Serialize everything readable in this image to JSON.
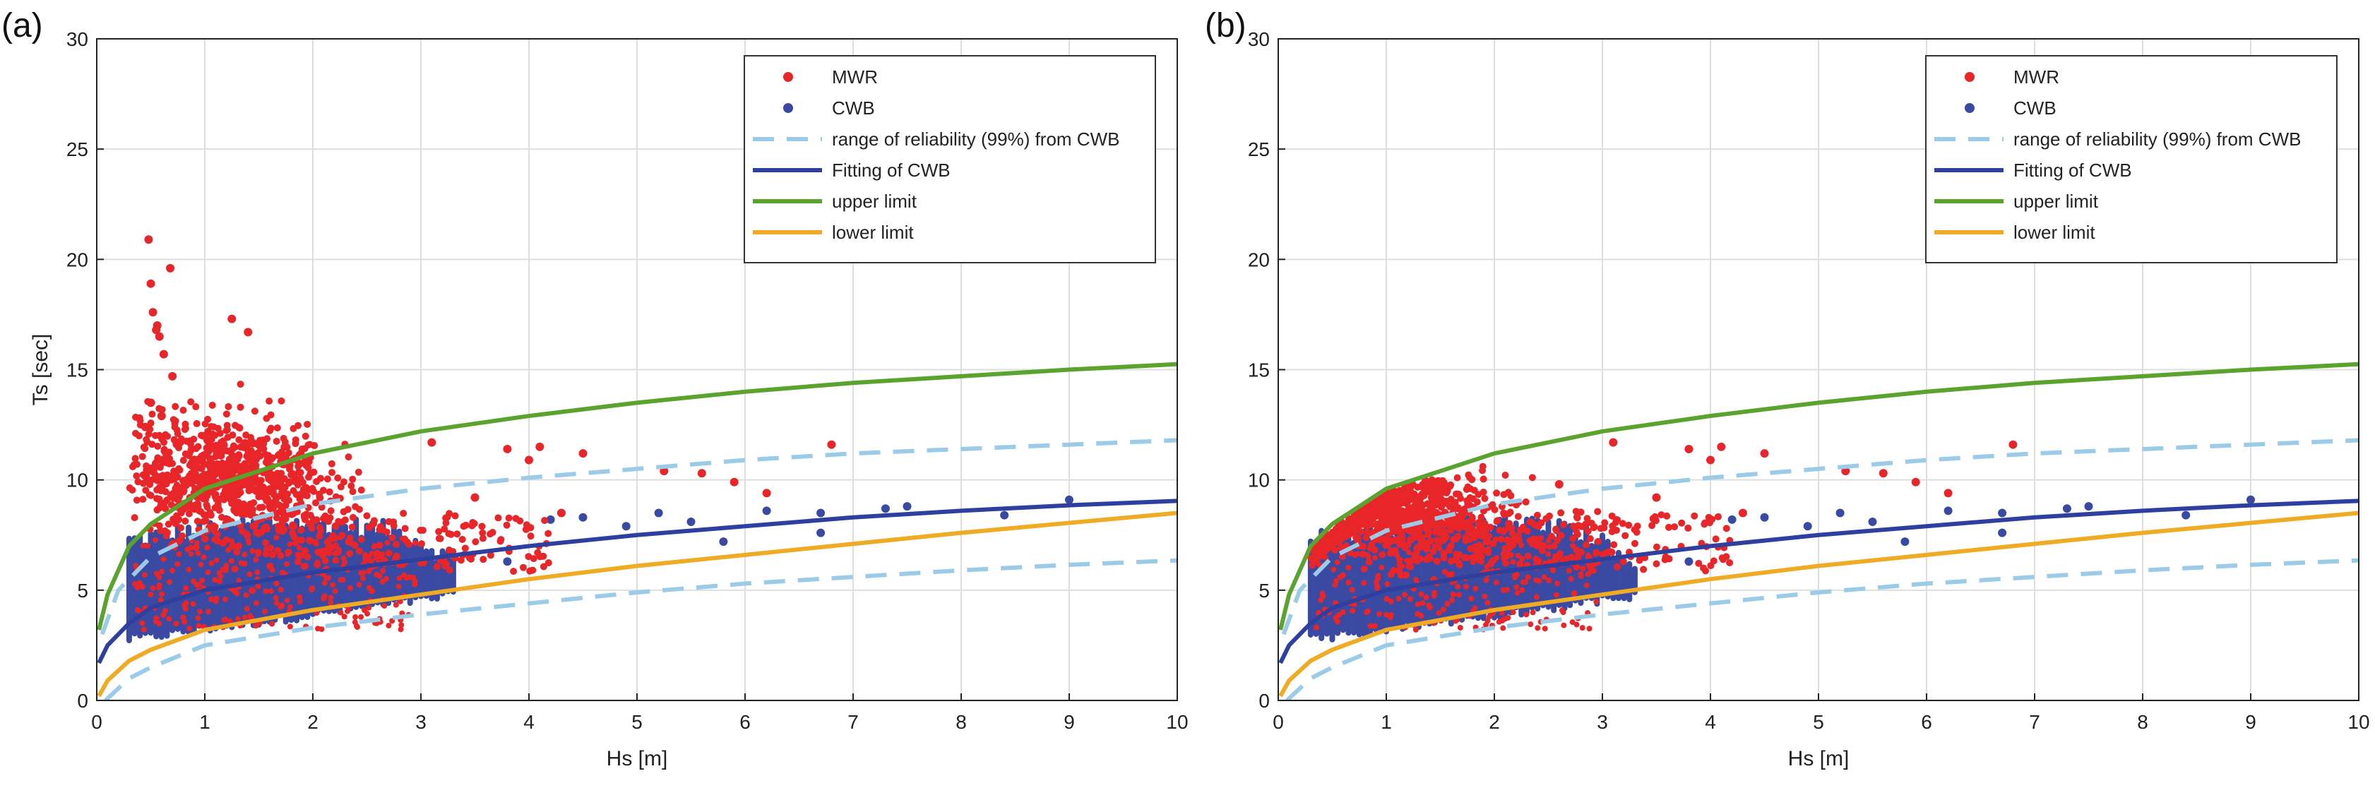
{
  "colors": {
    "mwr": "#e8262a",
    "cwb": "#3a4aa3",
    "range": "#9ccbe8",
    "fitting": "#2e3f9e",
    "upper": "#5aa32e",
    "lower": "#eeab23",
    "grid": "#dedede",
    "axis": "#222222"
  },
  "chart_data": [
    {
      "type": "scatter",
      "panel_label": "(a)",
      "xlabel": "Hs [m]",
      "ylabel": "Ts [sec]",
      "xlim": [
        0,
        10
      ],
      "ylim": [
        0,
        30
      ],
      "xticks": [
        0,
        1,
        2,
        3,
        4,
        5,
        6,
        7,
        8,
        9,
        10
      ],
      "yticks": [
        0,
        5,
        10,
        15,
        20,
        25,
        30
      ],
      "grid": true,
      "legend_position": "top-right",
      "legend": [
        "MWR",
        "CWB",
        "range of reliability (99%) from CWB",
        "Fitting of CWB",
        "upper limit",
        "lower limit"
      ],
      "curves": [
        {
          "name": "upper limit",
          "style": "solid",
          "x": [
            0.02,
            0.1,
            0.3,
            0.5,
            1,
            2,
            3,
            4,
            5,
            6,
            7,
            8,
            9,
            10
          ],
          "y": [
            3.2,
            4.8,
            7.0,
            8.0,
            9.6,
            11.2,
            12.2,
            12.9,
            13.5,
            14.0,
            14.4,
            14.7,
            15.0,
            15.25
          ]
        },
        {
          "name": "range upper (99%)",
          "style": "dashed",
          "x": [
            0.05,
            0.2,
            0.5,
            1,
            2,
            3,
            4,
            5,
            6,
            7,
            8,
            9,
            10
          ],
          "y": [
            3.0,
            5.0,
            6.5,
            7.7,
            8.9,
            9.6,
            10.1,
            10.5,
            10.9,
            11.2,
            11.4,
            11.6,
            11.8
          ]
        },
        {
          "name": "Fitting of CWB",
          "style": "solid",
          "x": [
            0.02,
            0.1,
            0.3,
            0.5,
            1,
            2,
            3,
            4,
            5,
            6,
            7,
            8,
            9,
            10
          ],
          "y": [
            1.7,
            2.5,
            3.5,
            4.2,
            5.0,
            5.8,
            6.4,
            7.0,
            7.5,
            7.9,
            8.3,
            8.6,
            8.85,
            9.05
          ]
        },
        {
          "name": "lower limit",
          "style": "solid",
          "x": [
            0.02,
            0.1,
            0.3,
            0.5,
            1,
            2,
            3,
            4,
            5,
            6,
            7,
            8,
            9,
            10
          ],
          "y": [
            0.2,
            0.9,
            1.8,
            2.3,
            3.2,
            4.1,
            4.8,
            5.5,
            6.1,
            6.6,
            7.1,
            7.6,
            8.05,
            8.5
          ]
        },
        {
          "name": "range lower (99%)",
          "style": "dashed",
          "x": [
            0.08,
            0.3,
            0.5,
            1,
            2,
            3,
            4,
            5,
            6,
            7,
            8,
            9,
            10
          ],
          "y": [
            0.0,
            1.0,
            1.5,
            2.5,
            3.3,
            3.9,
            4.4,
            4.9,
            5.3,
            5.6,
            5.9,
            6.15,
            6.35
          ]
        }
      ],
      "cwb_bars": {
        "x_start": 0.3,
        "x_end": 3.3,
        "x_step": 0.05,
        "top_base": 7.2,
        "top_slope": 1.0,
        "bottom": 2.8,
        "bottom_slope": 0.9
      },
      "mwr_cloud": {
        "x_range": [
          0.3,
          2.0
        ],
        "center": [
          1.2,
          10.0
        ],
        "spread": [
          0.5,
          1.4
        ],
        "count": 900
      },
      "mwr_outliers": {
        "x": [
          0.48,
          0.5,
          0.52,
          0.55,
          0.58,
          0.62,
          0.68,
          0.7,
          0.5,
          0.6,
          0.56,
          0.45,
          1.25,
          1.4,
          3.1,
          3.8,
          4.1,
          4.5,
          5.25,
          5.6,
          5.9,
          6.2,
          6.8,
          4.0,
          3.5,
          4.3
        ],
        "y": [
          20.9,
          18.9,
          17.6,
          16.8,
          16.5,
          15.7,
          19.6,
          14.7,
          13.5,
          12.9,
          17.0,
          12.4,
          17.3,
          16.7,
          11.7,
          11.4,
          11.5,
          11.2,
          10.4,
          10.3,
          9.9,
          9.4,
          11.6,
          10.9,
          9.2,
          8.5
        ]
      },
      "cwb_outliers": {
        "x": [
          3.8,
          4.2,
          4.5,
          4.9,
          5.2,
          5.5,
          6.2,
          6.7,
          6.7,
          7.3,
          7.5,
          8.4,
          9.0,
          5.8
        ],
        "y": [
          6.3,
          8.2,
          8.3,
          7.9,
          8.5,
          8.1,
          8.6,
          8.5,
          7.6,
          8.7,
          8.8,
          8.4,
          9.1,
          7.2
        ]
      }
    },
    {
      "type": "scatter",
      "panel_label": "(b)",
      "xlabel": "Hs [m]",
      "ylabel": "",
      "xlim": [
        0,
        10
      ],
      "ylim": [
        0,
        30
      ],
      "xticks": [
        0,
        1,
        2,
        3,
        4,
        5,
        6,
        7,
        8,
        9,
        10
      ],
      "yticks": [
        0,
        5,
        10,
        15,
        20,
        25,
        30
      ],
      "grid": true,
      "legend_position": "top-right",
      "legend": [
        "MWR",
        "CWB",
        "range of reliability (99%) from CWB",
        "Fitting of CWB",
        "upper limit",
        "lower limit"
      ],
      "curves": [
        {
          "name": "upper limit",
          "style": "solid",
          "x": [
            0.02,
            0.1,
            0.3,
            0.5,
            1,
            2,
            3,
            4,
            5,
            6,
            7,
            8,
            9,
            10
          ],
          "y": [
            3.2,
            4.8,
            7.0,
            8.0,
            9.6,
            11.2,
            12.2,
            12.9,
            13.5,
            14.0,
            14.4,
            14.7,
            15.0,
            15.25
          ]
        },
        {
          "name": "range upper (99%)",
          "style": "dashed",
          "x": [
            0.05,
            0.2,
            0.5,
            1,
            2,
            3,
            4,
            5,
            6,
            7,
            8,
            9,
            10
          ],
          "y": [
            3.0,
            5.0,
            6.5,
            7.7,
            8.9,
            9.6,
            10.1,
            10.5,
            10.9,
            11.2,
            11.4,
            11.6,
            11.8
          ]
        },
        {
          "name": "Fitting of CWB",
          "style": "solid",
          "x": [
            0.02,
            0.1,
            0.3,
            0.5,
            1,
            2,
            3,
            4,
            5,
            6,
            7,
            8,
            9,
            10
          ],
          "y": [
            1.7,
            2.5,
            3.5,
            4.2,
            5.0,
            5.8,
            6.4,
            7.0,
            7.5,
            7.9,
            8.3,
            8.6,
            8.85,
            9.05
          ]
        },
        {
          "name": "lower limit",
          "style": "solid",
          "x": [
            0.02,
            0.1,
            0.3,
            0.5,
            1,
            2,
            3,
            4,
            5,
            6,
            7,
            8,
            9,
            10
          ],
          "y": [
            0.2,
            0.9,
            1.8,
            2.3,
            3.2,
            4.1,
            4.8,
            5.5,
            6.1,
            6.6,
            7.1,
            7.6,
            8.05,
            8.5
          ]
        },
        {
          "name": "range lower (99%)",
          "style": "dashed",
          "x": [
            0.08,
            0.3,
            0.5,
            1,
            2,
            3,
            4,
            5,
            6,
            7,
            8,
            9,
            10
          ],
          "y": [
            0.0,
            1.0,
            1.5,
            2.5,
            3.3,
            3.9,
            4.4,
            4.9,
            5.3,
            5.6,
            5.9,
            6.15,
            6.35
          ]
        }
      ],
      "cwb_bars": {
        "x_start": 0.3,
        "x_end": 3.3,
        "x_step": 0.05,
        "top_base": 7.2,
        "top_slope": 1.0,
        "bottom": 2.8,
        "bottom_slope": 0.9
      },
      "mwr_cloud": {
        "x_range": [
          0.3,
          2.0
        ],
        "center": [
          1.1,
          8.6
        ],
        "spread": [
          0.5,
          1.1
        ],
        "count": 900,
        "clip_to_upper": true
      },
      "mwr_outliers": {
        "x": [
          3.1,
          3.8,
          4.1,
          4.5,
          5.25,
          5.6,
          5.9,
          6.2,
          6.8,
          4.0,
          3.5,
          4.3,
          2.6
        ],
        "y": [
          11.7,
          11.4,
          11.5,
          11.2,
          10.4,
          10.3,
          9.9,
          9.4,
          11.6,
          10.9,
          9.2,
          8.5,
          9.8
        ]
      },
      "cwb_outliers": {
        "x": [
          3.8,
          4.2,
          4.5,
          4.9,
          5.2,
          5.5,
          6.2,
          6.7,
          6.7,
          7.3,
          7.5,
          8.4,
          9.0,
          5.8
        ],
        "y": [
          6.3,
          8.2,
          8.3,
          7.9,
          8.5,
          8.1,
          8.6,
          8.5,
          7.6,
          8.7,
          8.8,
          8.4,
          9.1,
          7.2
        ]
      }
    }
  ]
}
